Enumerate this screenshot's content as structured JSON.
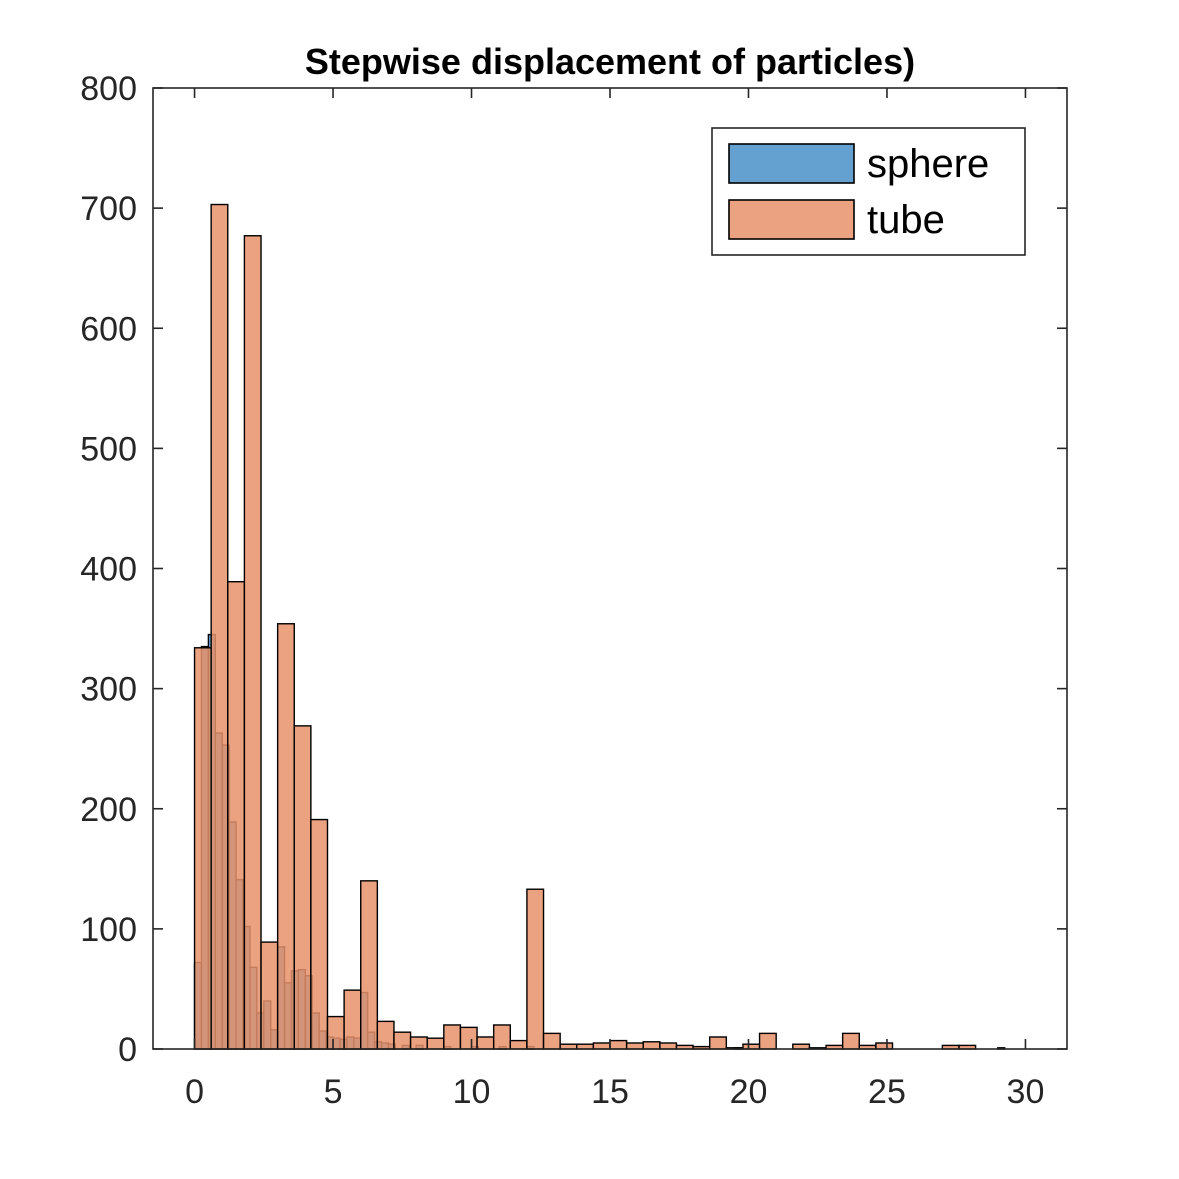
{
  "chart_data": {
    "type": "bar",
    "title": "Stepwise displacement of particles)",
    "xlabel": "",
    "ylabel": "",
    "xlim": [
      -1.5,
      31.5
    ],
    "ylim": [
      0,
      800
    ],
    "xticks": [
      0,
      5,
      10,
      15,
      20,
      25,
      30
    ],
    "yticks": [
      0,
      100,
      200,
      300,
      400,
      500,
      600,
      700,
      800
    ],
    "grid": false,
    "legend_position": "top-right",
    "series": [
      {
        "name": "sphere",
        "color": "#4A90C8",
        "opacity": 0.85,
        "bin_width": 0.25,
        "bins": [
          {
            "x": 0.0,
            "y": 72
          },
          {
            "x": 0.25,
            "y": 335
          },
          {
            "x": 0.5,
            "y": 345
          },
          {
            "x": 0.75,
            "y": 263
          },
          {
            "x": 1.0,
            "y": 253
          },
          {
            "x": 1.25,
            "y": 189
          },
          {
            "x": 1.5,
            "y": 141
          },
          {
            "x": 1.75,
            "y": 102
          },
          {
            "x": 2.0,
            "y": 68
          },
          {
            "x": 2.25,
            "y": 30
          },
          {
            "x": 2.5,
            "y": 40
          },
          {
            "x": 2.75,
            "y": 16
          },
          {
            "x": 3.0,
            "y": 85
          },
          {
            "x": 3.25,
            "y": 55
          },
          {
            "x": 3.5,
            "y": 65
          },
          {
            "x": 3.75,
            "y": 66
          },
          {
            "x": 4.0,
            "y": 61
          },
          {
            "x": 4.25,
            "y": 30
          },
          {
            "x": 4.5,
            "y": 15
          },
          {
            "x": 4.75,
            "y": 10
          },
          {
            "x": 5.0,
            "y": 9
          },
          {
            "x": 5.25,
            "y": 8
          },
          {
            "x": 5.5,
            "y": 10
          },
          {
            "x": 5.75,
            "y": 9
          },
          {
            "x": 6.0,
            "y": 47
          },
          {
            "x": 6.25,
            "y": 14
          },
          {
            "x": 6.5,
            "y": 6
          },
          {
            "x": 6.75,
            "y": 5
          },
          {
            "x": 7.0,
            "y": 4
          },
          {
            "x": 7.5,
            "y": 3
          },
          {
            "x": 8.0,
            "y": 3
          },
          {
            "x": 9.0,
            "y": 2
          },
          {
            "x": 10.0,
            "y": 2
          },
          {
            "x": 11.0,
            "y": 2
          },
          {
            "x": 12.0,
            "y": 2
          },
          {
            "x": 19.5,
            "y": 1
          },
          {
            "x": 29.0,
            "y": 1
          }
        ]
      },
      {
        "name": "tube",
        "color": "#E8926A",
        "opacity": 0.85,
        "bin_width": 0.6,
        "bins": [
          {
            "x": 0.0,
            "y": 334
          },
          {
            "x": 0.6,
            "y": 703
          },
          {
            "x": 1.2,
            "y": 389
          },
          {
            "x": 1.8,
            "y": 677
          },
          {
            "x": 2.4,
            "y": 89
          },
          {
            "x": 3.0,
            "y": 354
          },
          {
            "x": 3.6,
            "y": 269
          },
          {
            "x": 4.2,
            "y": 191
          },
          {
            "x": 4.8,
            "y": 27
          },
          {
            "x": 5.4,
            "y": 49
          },
          {
            "x": 6.0,
            "y": 140
          },
          {
            "x": 6.6,
            "y": 23
          },
          {
            "x": 7.2,
            "y": 14
          },
          {
            "x": 7.8,
            "y": 10
          },
          {
            "x": 8.4,
            "y": 9
          },
          {
            "x": 9.0,
            "y": 20
          },
          {
            "x": 9.6,
            "y": 18
          },
          {
            "x": 10.2,
            "y": 10
          },
          {
            "x": 10.8,
            "y": 20
          },
          {
            "x": 11.4,
            "y": 7
          },
          {
            "x": 12.0,
            "y": 133
          },
          {
            "x": 12.6,
            "y": 13
          },
          {
            "x": 13.2,
            "y": 4
          },
          {
            "x": 13.8,
            "y": 4
          },
          {
            "x": 14.4,
            "y": 5
          },
          {
            "x": 15.0,
            "y": 7
          },
          {
            "x": 15.6,
            "y": 5
          },
          {
            "x": 16.2,
            "y": 6
          },
          {
            "x": 16.8,
            "y": 5
          },
          {
            "x": 17.4,
            "y": 3
          },
          {
            "x": 18.0,
            "y": 2
          },
          {
            "x": 18.6,
            "y": 10
          },
          {
            "x": 19.2,
            "y": 1
          },
          {
            "x": 19.8,
            "y": 4
          },
          {
            "x": 20.4,
            "y": 13
          },
          {
            "x": 21.6,
            "y": 4
          },
          {
            "x": 22.2,
            "y": 1
          },
          {
            "x": 22.8,
            "y": 3
          },
          {
            "x": 23.4,
            "y": 13
          },
          {
            "x": 24.0,
            "y": 3
          },
          {
            "x": 24.6,
            "y": 5
          },
          {
            "x": 27.0,
            "y": 3
          },
          {
            "x": 27.6,
            "y": 3
          }
        ]
      }
    ]
  }
}
